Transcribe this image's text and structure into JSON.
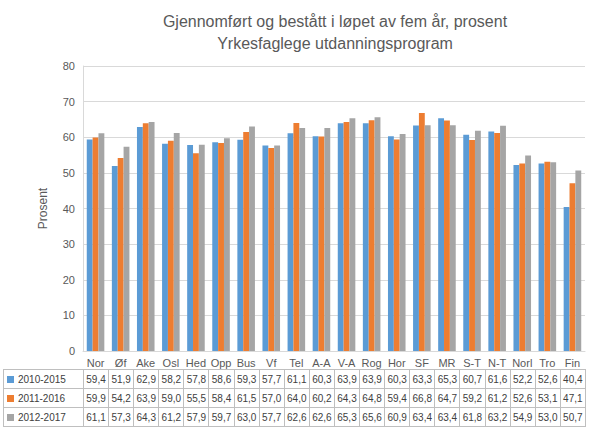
{
  "chart_data": {
    "type": "bar",
    "title": "Gjennomført og bestått i løpet av fem år, prosent",
    "subtitle": "Yrkesfaglege utdanningsprogram",
    "ylabel": "Prosent",
    "categories": [
      "Nor",
      "Øf",
      "Ake",
      "Osl",
      "Hed",
      "Opp",
      "Bus",
      "Vf",
      "Tel",
      "A-A",
      "V-A",
      "Rog",
      "Hor",
      "SF",
      "MR",
      "S-T",
      "N-T",
      "Norl",
      "Tro",
      "Fin"
    ],
    "series": [
      {
        "name": "2010-2015",
        "color": "#5B9BD5",
        "values": [
          59.4,
          51.9,
          62.9,
          58.2,
          57.8,
          58.6,
          59.3,
          57.7,
          61.1,
          60.3,
          63.9,
          63.9,
          60.3,
          63.3,
          65.3,
          60.7,
          61.6,
          52.2,
          52.6,
          40.4
        ],
        "value_labels": [
          "59,4",
          "51,9",
          "62,9",
          "58,2",
          "57,8",
          "58,6",
          "59,3",
          "57,7",
          "61,1",
          "60,3",
          "63,9",
          "63,9",
          "60,3",
          "63,3",
          "65,3",
          "60,7",
          "61,6",
          "52,2",
          "52,6",
          "40,4"
        ]
      },
      {
        "name": "2011-2016",
        "color": "#ED7D31",
        "values": [
          59.9,
          54.2,
          63.9,
          59.0,
          55.5,
          58.4,
          61.5,
          57.0,
          64.0,
          60.2,
          64.3,
          64.8,
          59.4,
          66.8,
          64.7,
          59.2,
          61.2,
          52.6,
          53.1,
          47.1
        ],
        "value_labels": [
          "59,9",
          "54,2",
          "63,9",
          "59,0",
          "55,5",
          "58,4",
          "61,5",
          "57,0",
          "64,0",
          "60,2",
          "64,3",
          "64,8",
          "59,4",
          "66,8",
          "64,7",
          "59,2",
          "61,2",
          "52,6",
          "53,1",
          "47,1"
        ]
      },
      {
        "name": "2012-2017",
        "color": "#A5A5A5",
        "values": [
          61.1,
          57.3,
          64.3,
          61.2,
          57.9,
          59.7,
          63.0,
          57.7,
          62.6,
          62.6,
          65.3,
          65.6,
          60.9,
          63.4,
          63.4,
          61.8,
          63.2,
          54.9,
          53.0,
          50.7
        ],
        "value_labels": [
          "61,1",
          "57,3",
          "64,3",
          "61,2",
          "57,9",
          "59,7",
          "63,0",
          "57,7",
          "62,6",
          "62,6",
          "65,3",
          "65,6",
          "60,9",
          "63,4",
          "63,4",
          "61,8",
          "63,2",
          "54,9",
          "53,0",
          "50,7"
        ]
      }
    ],
    "ylim": [
      0,
      80
    ],
    "yticks": [
      0,
      10,
      20,
      30,
      40,
      50,
      60,
      70,
      80
    ],
    "grid": true
  }
}
